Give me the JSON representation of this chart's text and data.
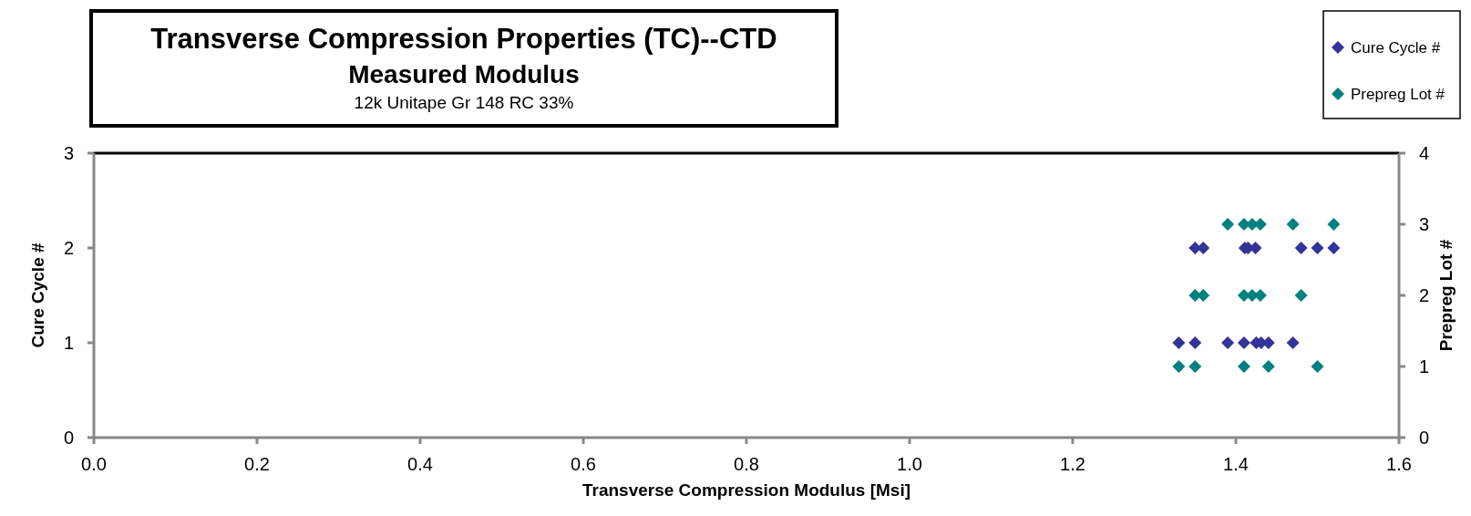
{
  "chart_data": {
    "type": "scatter",
    "title": "Transverse Compression Properties (TC)--CTD",
    "subtitle": "Measured Modulus",
    "annotations": [
      "12k Unitape Gr 148 RC 33%"
    ],
    "xlabel": "Transverse Compression Modulus [Msi]",
    "ylabel": "Cure Cycle #",
    "y2label": "Prepreg Lot #",
    "xlim": [
      0,
      1.6
    ],
    "xticks": [
      {
        "value": 0,
        "label": "0.0"
      },
      {
        "value": 0.2,
        "label": "0.2"
      },
      {
        "value": 0.4,
        "label": "0.4"
      },
      {
        "value": 0.6,
        "label": "0.6"
      },
      {
        "value": 0.8,
        "label": "0.8"
      },
      {
        "value": 1,
        "label": "1.0"
      },
      {
        "value": 1.2,
        "label": "1.2"
      },
      {
        "value": 1.4,
        "label": "1.4"
      },
      {
        "value": 1.6,
        "label": "1.6"
      }
    ],
    "ylim": [
      0,
      3
    ],
    "yticks": [
      0,
      1,
      2,
      3
    ],
    "y2lim": [
      0,
      4
    ],
    "y2ticks": [
      0,
      1,
      2,
      3,
      4
    ],
    "marker": "diamond",
    "legend": "top right",
    "grid": false,
    "series": [
      {
        "name": "Cure Cycle #",
        "color": "#333399",
        "x": [
          1.33,
          1.35,
          1.39,
          1.41,
          1.425,
          1.431,
          1.44,
          1.47,
          1.35,
          1.36,
          1.411,
          1.415,
          1.424,
          1.48,
          1.5,
          1.52
        ],
        "values": [
          1,
          1,
          1,
          1,
          1,
          1,
          1,
          1,
          2,
          2,
          2,
          2,
          2,
          2,
          2,
          2
        ]
      },
      {
        "name": "Prepreg Lot #",
        "color": "#008080",
        "axis": "y2",
        "x": [
          1.33,
          1.35,
          1.41,
          1.44,
          1.5,
          1.35,
          1.36,
          1.41,
          1.42,
          1.43,
          1.48,
          1.39,
          1.41,
          1.42,
          1.43,
          1.47,
          1.52
        ],
        "values": [
          1,
          1,
          1,
          1,
          1,
          2,
          2,
          2,
          2,
          2,
          2,
          3,
          3,
          3,
          3,
          3,
          3
        ]
      }
    ]
  }
}
